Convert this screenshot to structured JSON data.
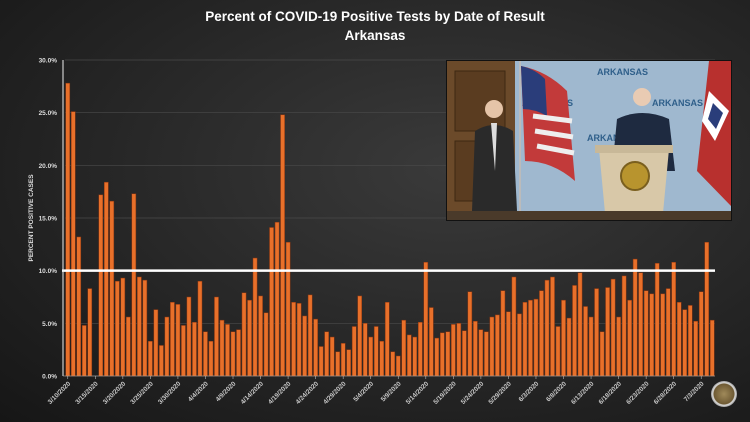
{
  "chart_data": {
    "type": "bar",
    "title": "Percent of COVID-19 Positive Tests by Date of Result",
    "subtitle": "Arkansas",
    "xlabel": "",
    "ylabel": "PERCENT POSITIVE CASES",
    "ylim": [
      0,
      30
    ],
    "yticks": [
      "0.0%",
      "5.0%",
      "10.0%",
      "15.0%",
      "20.0%",
      "25.0%",
      "30.0%"
    ],
    "grid": true,
    "reference_line": {
      "value": 10,
      "color": "#ffffff"
    },
    "start_date": "3/10/2020",
    "xtick_labels": [
      "3/10/2020",
      "3/15/2020",
      "3/20/2020",
      "3/25/2020",
      "3/30/2020",
      "4/4/2020",
      "4/9/2020",
      "4/14/2020",
      "4/19/2020",
      "4/24/2020",
      "4/29/2020",
      "5/4/2020",
      "5/9/2020",
      "5/14/2020",
      "5/19/2020",
      "5/24/2020",
      "5/29/2020",
      "6/3/2020",
      "6/8/2020",
      "6/13/2020",
      "6/18/2020",
      "6/23/2020",
      "6/28/2020",
      "7/3/2020"
    ],
    "xtick_every": 5,
    "values": [
      27.8,
      25.1,
      13.2,
      4.8,
      8.3,
      0,
      17.2,
      18.4,
      16.6,
      9.0,
      9.3,
      5.6,
      17.3,
      9.4,
      9.1,
      3.3,
      6.3,
      2.9,
      5.6,
      7.0,
      6.8,
      4.8,
      7.5,
      5.1,
      9.0,
      4.2,
      3.3,
      7.5,
      5.3,
      4.9,
      4.2,
      4.4,
      7.9,
      7.2,
      11.2,
      7.6,
      6.0,
      14.1,
      14.6,
      24.8,
      12.7,
      7.0,
      6.9,
      5.7,
      7.7,
      5.4,
      2.8,
      4.2,
      3.7,
      2.3,
      3.1,
      2.5,
      4.7,
      7.6,
      5.0,
      3.7,
      4.7,
      3.3,
      7.0,
      2.3,
      1.9,
      5.3,
      3.9,
      3.7,
      5.1,
      10.8,
      6.5,
      3.6,
      4.1,
      4.2,
      4.9,
      5.0,
      4.3,
      8.0,
      5.2,
      4.4,
      4.2,
      5.6,
      5.8,
      8.1,
      6.1,
      9.4,
      5.9,
      7.0,
      7.2,
      7.3,
      8.1,
      9.1,
      9.4,
      4.7,
      7.2,
      5.5,
      8.6,
      9.8,
      6.6,
      5.6,
      8.3,
      4.2,
      8.4,
      9.2,
      5.6,
      9.5,
      7.2,
      11.1,
      9.8,
      8.1,
      7.8,
      10.7,
      7.8,
      8.3,
      10.8,
      7.0,
      6.3,
      6.7,
      5.2,
      8.0,
      12.7,
      5.3
    ],
    "bar_color": "#e8702a"
  },
  "inset": {
    "backdrop_text": "ARKANSAS"
  }
}
